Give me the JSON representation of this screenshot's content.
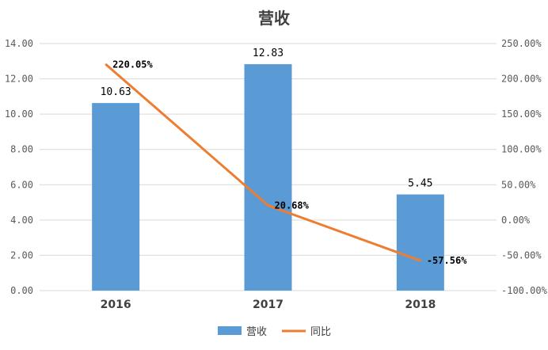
{
  "chart_data": {
    "type": "bar",
    "title": "营收",
    "categories": [
      "2016",
      "2017",
      "2018"
    ],
    "series": [
      {
        "name": "营收",
        "type": "bar",
        "axis": "left",
        "values": [
          10.63,
          12.83,
          5.45
        ],
        "labels": [
          "10.63",
          "12.83",
          "5.45"
        ],
        "color": "#5B9BD5"
      },
      {
        "name": "同比",
        "type": "line",
        "axis": "right",
        "values": [
          220.05,
          20.68,
          -57.56
        ],
        "labels": [
          "220.05%",
          "20.68%",
          "-57.56%"
        ],
        "color": "#ED7D31"
      }
    ],
    "y_left": {
      "min": 0,
      "max": 14,
      "ticks": [
        "0.00",
        "2.00",
        "4.00",
        "6.00",
        "8.00",
        "10.00",
        "12.00",
        "14.00"
      ]
    },
    "y_right": {
      "min": -100,
      "max": 250,
      "ticks": [
        "-100.00%",
        "-50.00%",
        "0.00%",
        "50.00%",
        "100.00%",
        "150.00%",
        "200.00%",
        "250.00%"
      ]
    },
    "grid": true,
    "legend": "bottom"
  }
}
